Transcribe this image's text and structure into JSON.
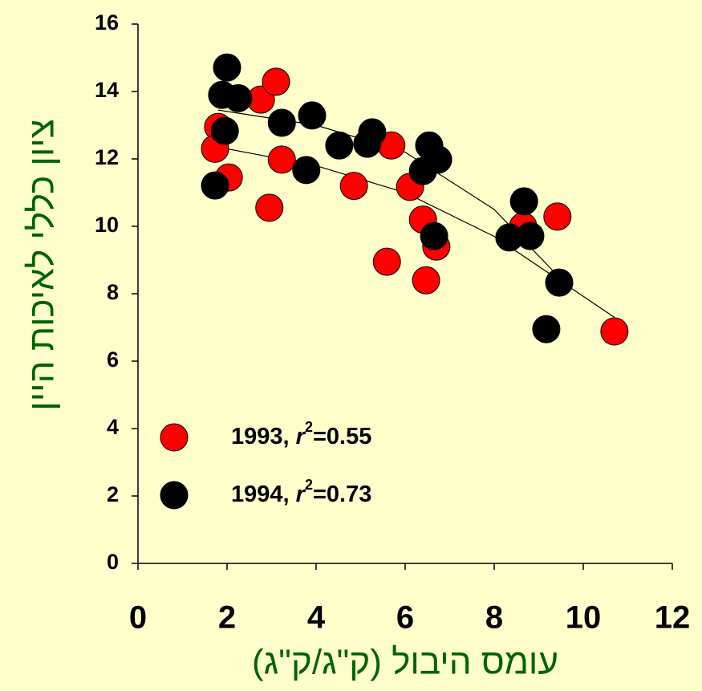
{
  "chart_data": {
    "type": "scatter",
    "xlabel": "עומס היבול (ק\"ג/ק\"ג)",
    "ylabel": "ציון כללי לאיכות היין",
    "xlim": [
      0,
      12
    ],
    "xticks": [
      0,
      2,
      4,
      6,
      8,
      10,
      12
    ],
    "ylim": [
      0,
      16
    ],
    "yticks": [
      0,
      2,
      4,
      6,
      8,
      10,
      12,
      14,
      16
    ],
    "label_color": "#006400",
    "series": [
      {
        "name": "1993",
        "legend_suffix": [
          ", ",
          "r",
          "2",
          "=0.55"
        ],
        "color": "#ff0000",
        "x": [
          1.8,
          1.73,
          2.04,
          2.76,
          3.1,
          3.23,
          2.95,
          4.85,
          5.59,
          5.69,
          6.11,
          6.4,
          6.47,
          6.7,
          8.65,
          9.42,
          10.7
        ],
        "values": [
          12.95,
          12.3,
          11.45,
          13.76,
          14.29,
          11.98,
          10.55,
          11.2,
          8.95,
          12.4,
          11.17,
          10.2,
          8.4,
          9.4,
          10.0,
          10.29,
          6.88
        ],
        "fit_x": [
          1.8,
          4,
          6,
          8,
          10.7
        ],
        "fit_values": [
          12.35,
          11.8,
          11.0,
          9.7,
          7.3
        ]
      },
      {
        "name": "1994",
        "legend_suffix": [
          ", ",
          "r",
          "2",
          "=0.73"
        ],
        "color": "#000000",
        "x": [
          2.0,
          1.89,
          2.25,
          1.95,
          1.73,
          3.23,
          3.91,
          3.78,
          4.52,
          5.26,
          5.15,
          6.54,
          6.74,
          6.4,
          6.65,
          8.34,
          8.67,
          8.81,
          9.46,
          9.17
        ],
        "values": [
          14.71,
          13.9,
          13.8,
          12.83,
          11.21,
          13.07,
          13.29,
          11.67,
          12.4,
          12.79,
          12.45,
          12.4,
          11.98,
          11.64,
          9.71,
          9.67,
          10.74,
          9.71,
          8.33,
          6.95
        ],
        "fit_x": [
          1.8,
          4,
          6,
          8,
          9.45
        ],
        "fit_values": [
          13.45,
          13.0,
          12.2,
          10.5,
          8.5
        ]
      }
    ]
  }
}
